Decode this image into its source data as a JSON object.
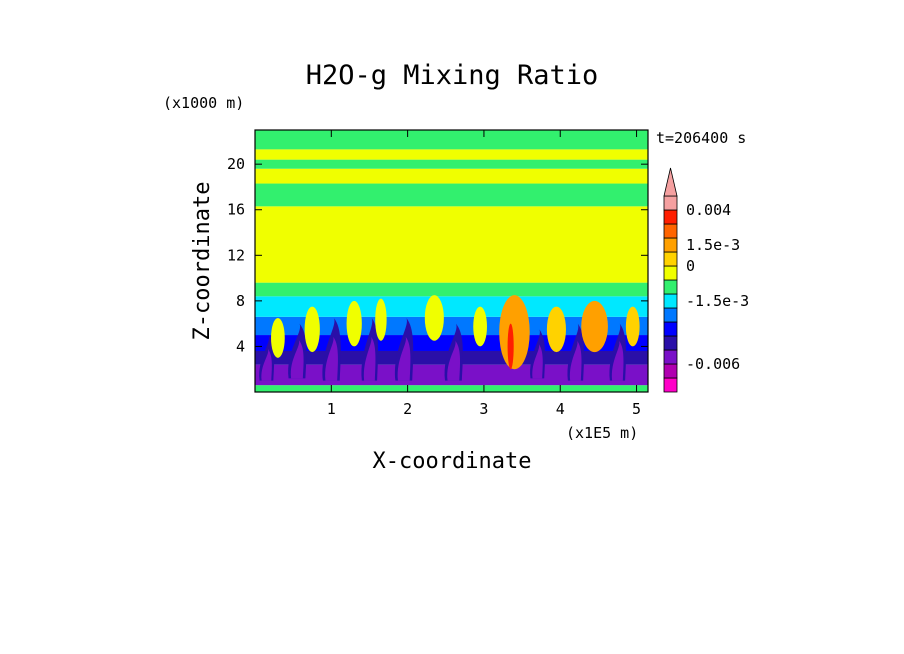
{
  "chart_data": {
    "type": "heatmap",
    "title": "H2O-g Mixing Ratio",
    "xlabel": "X-coordinate",
    "ylabel": "Z-coordinate",
    "x_unit": "(x1E5 m)",
    "y_unit": "(x1000 m)",
    "time_label": "t=206400 s",
    "xlim": [
      0,
      5.15
    ],
    "ylim": [
      0,
      23
    ],
    "x_ticks": [
      {
        "value": 1,
        "label": "1"
      },
      {
        "value": 2,
        "label": "2"
      },
      {
        "value": 3,
        "label": "3"
      },
      {
        "value": 4,
        "label": "4"
      },
      {
        "value": 5,
        "label": "5"
      }
    ],
    "y_ticks": [
      {
        "value": 4,
        "label": "4"
      },
      {
        "value": 8,
        "label": "8"
      },
      {
        "value": 12,
        "label": "12"
      },
      {
        "value": 16,
        "label": "16"
      },
      {
        "value": 20,
        "label": "20"
      }
    ],
    "colorbar": {
      "levels": [
        {
          "color": "#ff00c8"
        },
        {
          "color": "#b000b0"
        },
        {
          "color": "#7a10c8"
        },
        {
          "color": "#2a0fa8"
        },
        {
          "color": "#0000ff"
        },
        {
          "color": "#0078ff"
        },
        {
          "color": "#00e8ff"
        },
        {
          "color": "#32f06e"
        },
        {
          "color": "#f0ff00"
        },
        {
          "color": "#ffd200"
        },
        {
          "color": "#ffa000"
        },
        {
          "color": "#ff6400"
        },
        {
          "color": "#ff1e00"
        },
        {
          "color": "#f5a0a0"
        }
      ],
      "labels": [
        {
          "text": "0.004",
          "level": 13
        },
        {
          "text": "1.5e-3",
          "level": 10.5
        },
        {
          "text": "0",
          "level": 9
        },
        {
          "text": "-1.5e-3",
          "level": 6.5
        },
        {
          "text": "-0.006",
          "level": 2
        }
      ],
      "extend_top_arrow": true
    },
    "field_bands": [
      {
        "z0": 0,
        "z1": 0.6,
        "color": "#32f06e"
      },
      {
        "z0": 0.6,
        "z1": 2.4,
        "color": "#7a10c8"
      },
      {
        "z0": 2.4,
        "z1": 3.6,
        "color": "#2a0fa8"
      },
      {
        "z0": 3.6,
        "z1": 5.0,
        "color": "#0000ff"
      },
      {
        "z0": 5.0,
        "z1": 6.6,
        "color": "#0078ff"
      },
      {
        "z0": 6.6,
        "z1": 8.4,
        "color": "#00e8ff"
      },
      {
        "z0": 8.4,
        "z1": 9.6,
        "color": "#32f06e"
      },
      {
        "z0": 9.6,
        "z1": 16.3,
        "color": "#f0ff00"
      },
      {
        "z0": 16.3,
        "z1": 18.3,
        "color": "#32f06e"
      },
      {
        "z0": 18.3,
        "z1": 19.6,
        "color": "#f0ff00"
      },
      {
        "z0": 19.6,
        "z1": 20.4,
        "color": "#32f06e"
      },
      {
        "z0": 20.4,
        "z1": 21.3,
        "color": "#f0ff00"
      },
      {
        "z0": 21.3,
        "z1": 23.0,
        "color": "#32f06e"
      }
    ],
    "plumes": [
      {
        "x": 0.3,
        "z0": 3.0,
        "z1": 6.5,
        "w": 0.18,
        "color": "#f0ff00"
      },
      {
        "x": 0.75,
        "z0": 3.5,
        "z1": 7.5,
        "w": 0.2,
        "color": "#f0ff00"
      },
      {
        "x": 1.3,
        "z0": 4.0,
        "z1": 8.0,
        "w": 0.2,
        "color": "#f0ff00"
      },
      {
        "x": 1.65,
        "z0": 4.5,
        "z1": 8.2,
        "w": 0.15,
        "color": "#f0ff00"
      },
      {
        "x": 2.35,
        "z0": 4.5,
        "z1": 8.5,
        "w": 0.25,
        "color": "#f0ff00"
      },
      {
        "x": 2.95,
        "z0": 4.0,
        "z1": 7.5,
        "w": 0.18,
        "color": "#f0ff00"
      },
      {
        "x": 3.4,
        "z0": 2.0,
        "z1": 8.5,
        "w": 0.4,
        "color": "#ffa000"
      },
      {
        "x": 3.35,
        "z0": 2.0,
        "z1": 6.0,
        "w": 0.08,
        "color": "#ff1e00"
      },
      {
        "x": 3.95,
        "z0": 3.5,
        "z1": 7.5,
        "w": 0.25,
        "color": "#ffd200"
      },
      {
        "x": 4.45,
        "z0": 3.5,
        "z1": 8.0,
        "w": 0.35,
        "color": "#ffa000"
      },
      {
        "x": 4.95,
        "z0": 4.0,
        "z1": 7.5,
        "w": 0.18,
        "color": "#ffd200"
      }
    ],
    "tongues": [
      {
        "x": 0.15,
        "z0": 1.0,
        "z1": 5.0,
        "w": 0.18
      },
      {
        "x": 0.55,
        "z0": 1.2,
        "z1": 6.0,
        "w": 0.22
      },
      {
        "x": 1.0,
        "z0": 1.0,
        "z1": 6.5,
        "w": 0.22
      },
      {
        "x": 1.5,
        "z0": 1.0,
        "z1": 6.5,
        "w": 0.2
      },
      {
        "x": 1.95,
        "z0": 1.0,
        "z1": 6.5,
        "w": 0.22
      },
      {
        "x": 2.6,
        "z0": 1.0,
        "z1": 6.0,
        "w": 0.22
      },
      {
        "x": 3.7,
        "z0": 1.2,
        "z1": 5.5,
        "w": 0.18
      },
      {
        "x": 4.2,
        "z0": 1.0,
        "z1": 6.0,
        "w": 0.2
      },
      {
        "x": 4.75,
        "z0": 1.0,
        "z1": 6.0,
        "w": 0.2
      }
    ]
  }
}
